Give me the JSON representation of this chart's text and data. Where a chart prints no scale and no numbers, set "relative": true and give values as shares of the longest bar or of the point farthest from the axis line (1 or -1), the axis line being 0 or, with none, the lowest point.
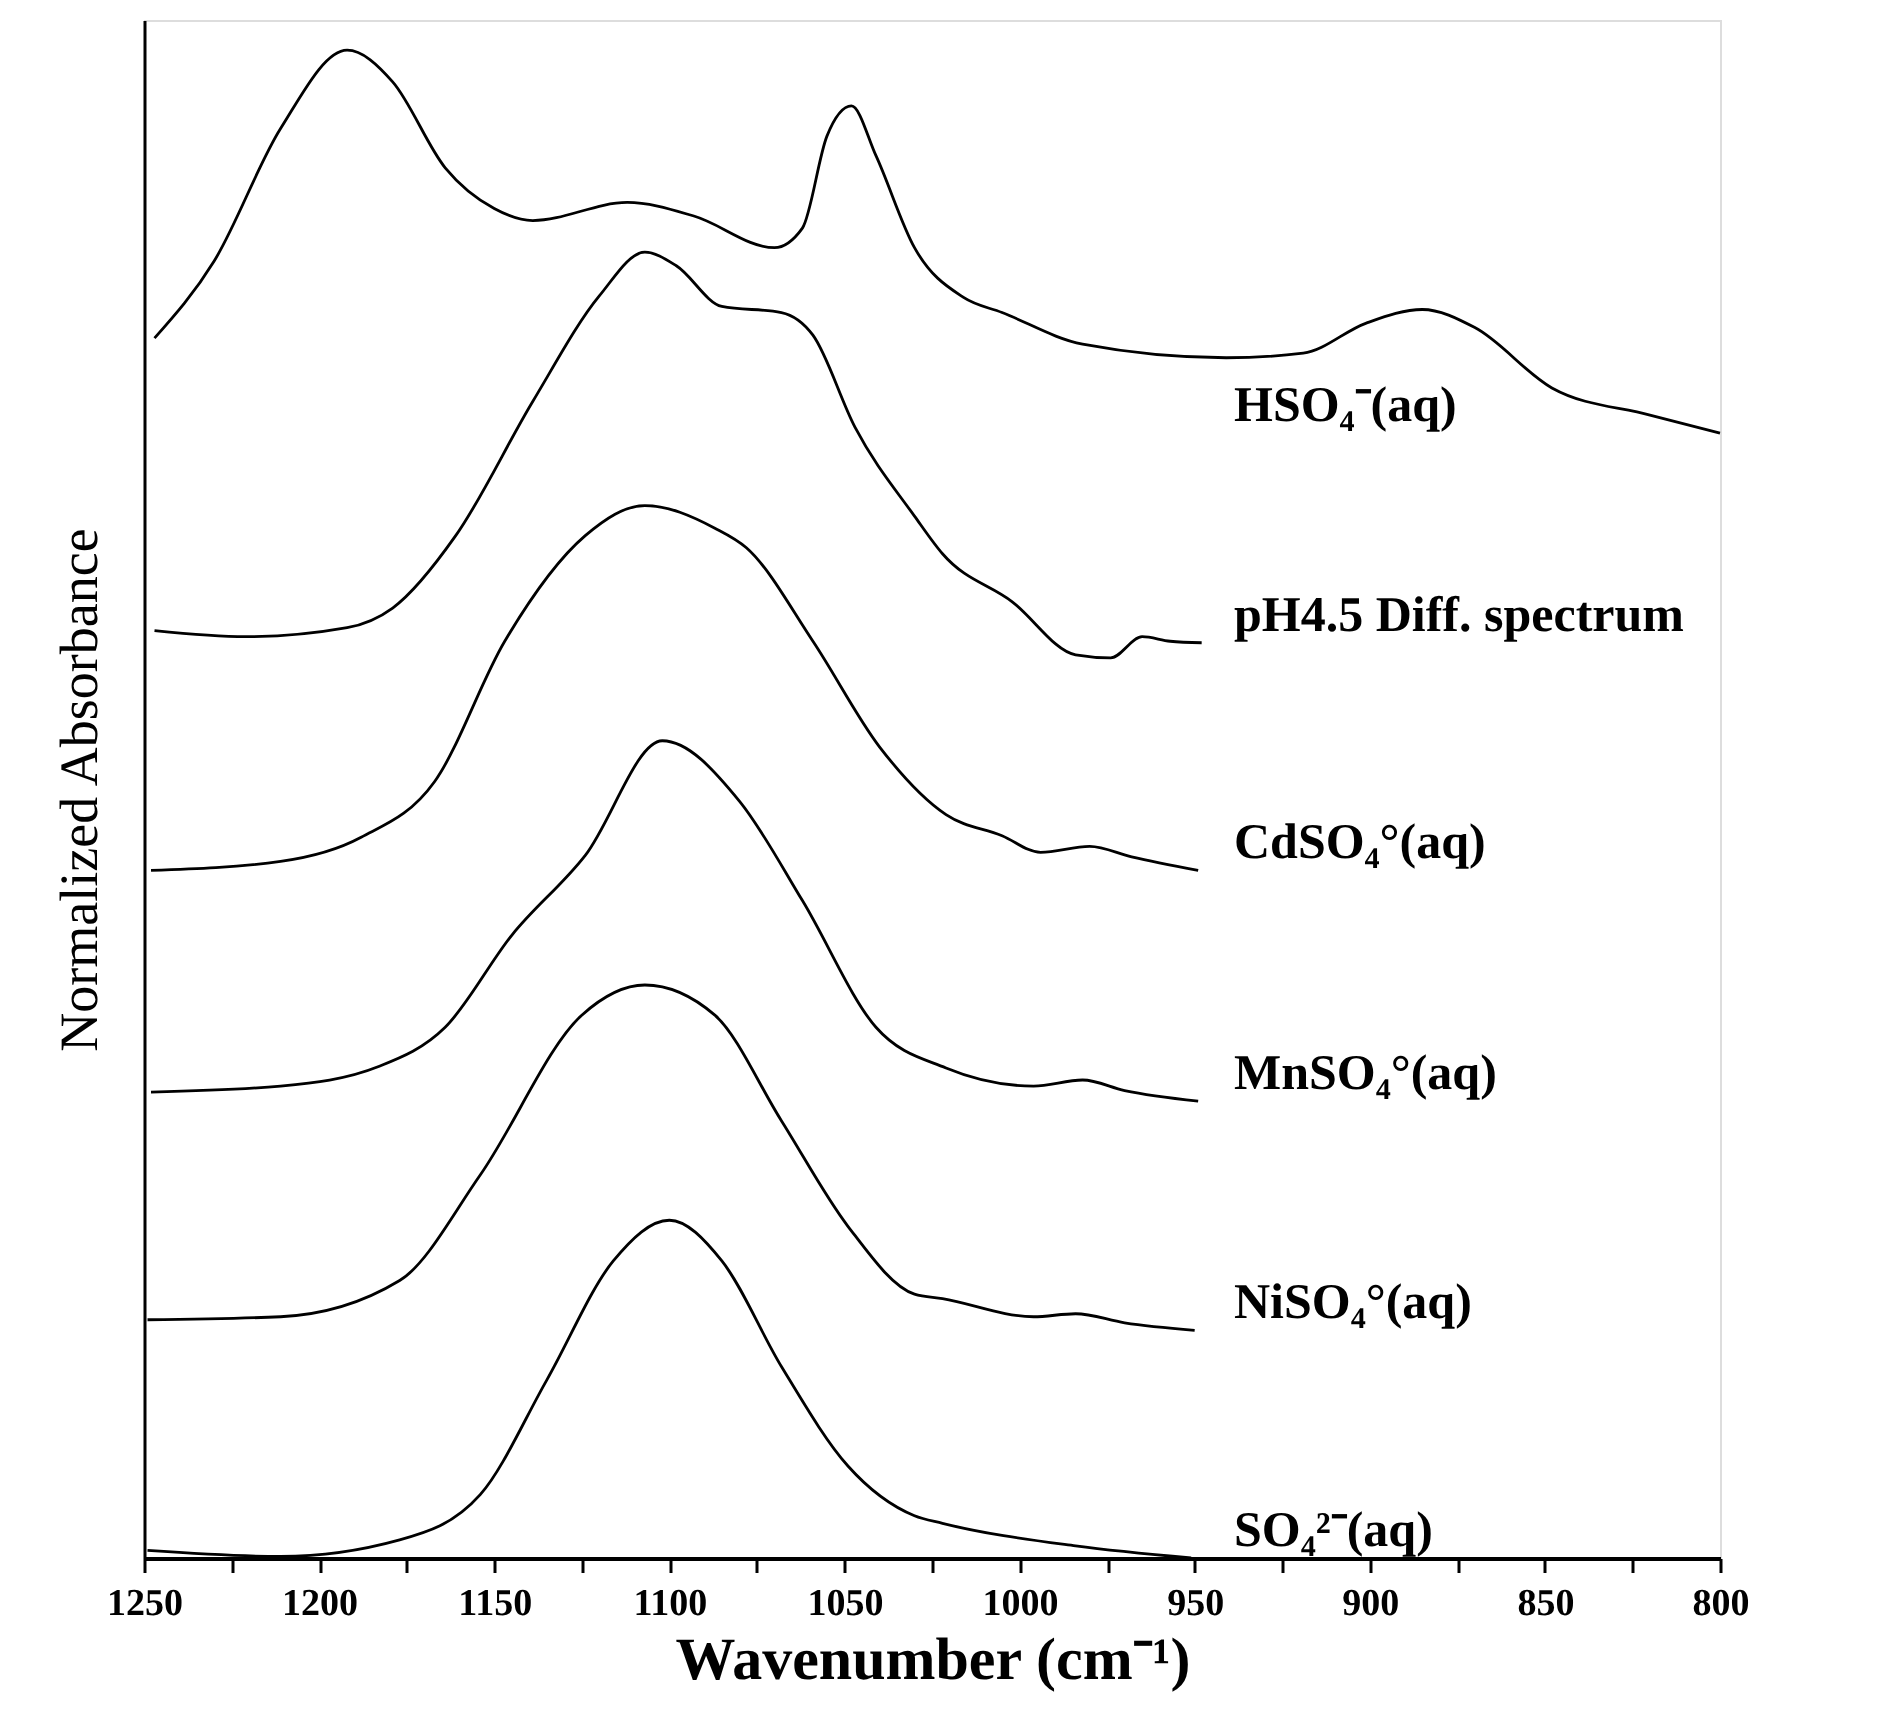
{
  "chart_data": {
    "type": "line",
    "relative": true,
    "xlabel": "Wavenumber (cm⁻¹)",
    "ylabel": "Normalized Absorbance",
    "xlim": [
      1250,
      800
    ],
    "xticks": [
      1250,
      {
        "value": 1225,
        "label": null
      },
      1200,
      {
        "value": 1175,
        "label": null
      },
      1150,
      {
        "value": 1125,
        "label": null
      },
      1100,
      {
        "value": 1075,
        "label": null
      },
      1050,
      {
        "value": 1025,
        "label": null
      },
      1000,
      {
        "value": 975,
        "label": null
      },
      950,
      {
        "value": 925,
        "label": null
      },
      900,
      {
        "value": 875,
        "label": null
      },
      850,
      {
        "value": 825,
        "label": null
      },
      800
    ],
    "grid": false,
    "legend": false,
    "marker": "none",
    "line_style": "solid",
    "series": [
      {
        "name": "HSO₄⁻(aq)",
        "color": "#000000",
        "x": [
          1247,
          1230,
          1211,
          1192,
          1179,
          1164,
          1150,
          1139,
          1112,
          1093,
          1070,
          1062,
          1055,
          1048,
          1041,
          1030,
          1016,
          1005,
          982,
          941,
          919,
          901,
          885,
          870,
          848,
          820,
          800
        ],
        "values": [
          0.809,
          0.86,
          0.948,
          1.0,
          0.979,
          0.922,
          0.895,
          0.887,
          0.899,
          0.89,
          0.869,
          0.882,
          0.943,
          0.963,
          0.93,
          0.869,
          0.836,
          0.826,
          0.805,
          0.796,
          0.799,
          0.819,
          0.828,
          0.816,
          0.776,
          0.758,
          0.746
        ]
      },
      {
        "name": "pH4.5 Diff. spectrum",
        "color": "#000000",
        "x": [
          1247,
          1221,
          1192,
          1179,
          1161,
          1139,
          1120,
          1107,
          1098,
          1085,
          1068,
          1059,
          1047,
          1030,
          1022,
          1002,
          984,
          974,
          965,
          957,
          948
        ],
        "values": [
          0.615,
          0.611,
          0.617,
          0.63,
          0.678,
          0.767,
          0.837,
          0.866,
          0.857,
          0.83,
          0.826,
          0.811,
          0.75,
          0.691,
          0.666,
          0.634,
          0.599,
          0.597,
          0.611,
          0.608,
          0.607
        ]
      },
      {
        "name": "CdSO₄°(aq)",
        "color": "#000000",
        "x": [
          1248,
          1211,
          1188,
          1167,
          1147,
          1124,
          1107,
          1087,
          1078,
          1059,
          1040,
          1021,
          1005,
          994,
          980,
          968,
          949
        ],
        "values": [
          0.456,
          0.462,
          0.478,
          0.515,
          0.608,
          0.678,
          0.698,
          0.683,
          0.67,
          0.608,
          0.538,
          0.493,
          0.479,
          0.468,
          0.472,
          0.465,
          0.456
        ]
      },
      {
        "name": "MnSO₄°(aq)",
        "color": "#000000",
        "x": [
          1248,
          1211,
          1183,
          1164,
          1145,
          1124,
          1102,
          1080,
          1062,
          1041,
          1021,
          996,
          982,
          970,
          949
        ],
        "values": [
          0.309,
          0.313,
          0.326,
          0.352,
          0.413,
          0.466,
          0.542,
          0.502,
          0.436,
          0.352,
          0.325,
          0.313,
          0.317,
          0.31,
          0.303
        ]
      },
      {
        "name": "NiSO₄°(aq)",
        "color": "#000000",
        "x": [
          1249,
          1211,
          1177,
          1154,
          1125,
          1107,
          1087,
          1068,
          1049,
          1030,
          1022,
          996,
          984,
          970,
          950
        ],
        "values": [
          0.158,
          0.16,
          0.184,
          0.254,
          0.36,
          0.38,
          0.36,
          0.29,
          0.22,
          0.175,
          0.172,
          0.16,
          0.162,
          0.156,
          0.151
        ]
      },
      {
        "name": "SO₄²⁻(aq)",
        "color": "#000000",
        "x": [
          1249,
          1211,
          1177,
          1154,
          1135,
          1116,
          1100,
          1085,
          1068,
          1049,
          1030,
          1022,
          984,
          951
        ],
        "values": [
          0.005,
          0.001,
          0.012,
          0.042,
          0.118,
          0.197,
          0.224,
          0.197,
          0.127,
          0.061,
          0.028,
          0.023,
          0.008,
          0.0
        ]
      }
    ]
  }
}
